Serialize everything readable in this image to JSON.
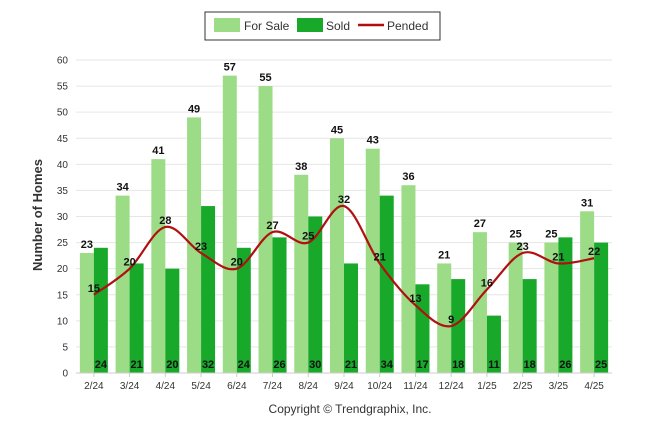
{
  "chart_data": {
    "type": "bar",
    "ylabel": "Number of Homes",
    "xlabel": "",
    "ylim": [
      0,
      60
    ],
    "yticks": [
      0,
      5,
      10,
      15,
      20,
      25,
      30,
      35,
      40,
      45,
      50,
      55,
      60
    ],
    "grid": true,
    "legend_position": "top-center",
    "categories": [
      "2/24",
      "3/24",
      "4/24",
      "5/24",
      "6/24",
      "7/24",
      "8/24",
      "9/24",
      "10/24",
      "11/24",
      "12/24",
      "1/25",
      "2/25",
      "3/25",
      "4/25"
    ],
    "series": [
      {
        "name": "For Sale",
        "type": "bar",
        "color": "#9ddc87",
        "values": [
          23,
          34,
          41,
          49,
          57,
          55,
          38,
          45,
          43,
          36,
          21,
          27,
          25,
          25,
          31
        ]
      },
      {
        "name": "Sold",
        "type": "bar",
        "color": "#18a82a",
        "values": [
          24,
          21,
          20,
          32,
          24,
          26,
          30,
          21,
          34,
          17,
          18,
          11,
          18,
          26,
          25
        ]
      },
      {
        "name": "Pended",
        "type": "line",
        "color": "#b01010",
        "values": [
          15,
          20,
          28,
          23,
          20,
          27,
          25,
          32,
          21,
          13,
          9,
          16,
          23,
          21,
          22
        ]
      }
    ]
  },
  "footer": {
    "copyright": "Copyright © Trendgraphix, Inc."
  }
}
